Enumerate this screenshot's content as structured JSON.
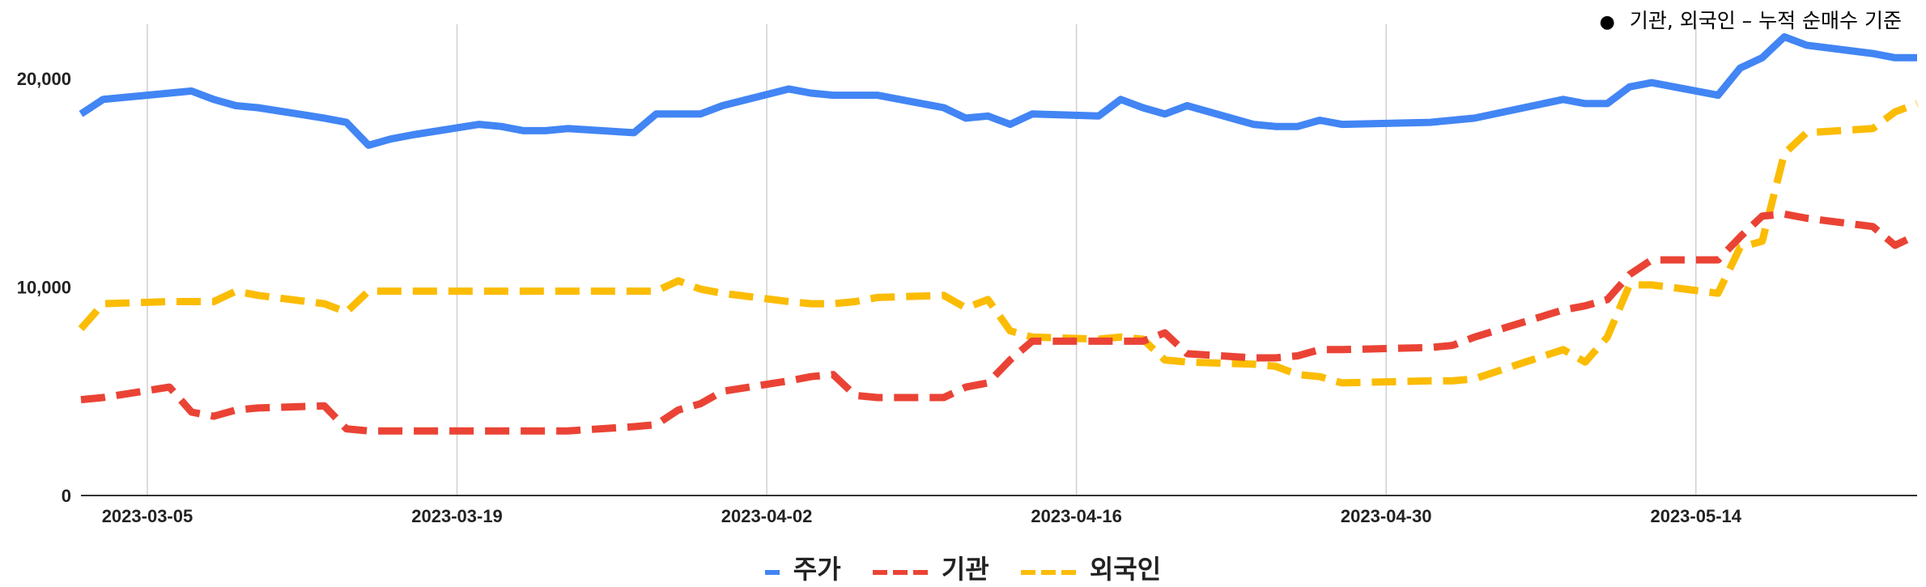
{
  "note": "기관, 외국인 – 누적 순매수 기준",
  "chart_data": {
    "type": "line",
    "x_ticks": [
      "2023-03-05",
      "2023-03-19",
      "2023-04-02",
      "2023-04-16",
      "2023-04-30",
      "2023-05-14"
    ],
    "y_ticks": [
      "0",
      "10,000",
      "20,000"
    ],
    "ylim": [
      0,
      20000
    ],
    "x_range": [
      "2023-03-02",
      "2023-05-24"
    ],
    "grid": "vertical",
    "legend": "bottom",
    "dates": [
      "2023-03-02",
      "2023-03-03",
      "2023-03-06",
      "2023-03-07",
      "2023-03-08",
      "2023-03-09",
      "2023-03-10",
      "2023-03-13",
      "2023-03-14",
      "2023-03-15",
      "2023-03-16",
      "2023-03-17",
      "2023-03-20",
      "2023-03-21",
      "2023-03-22",
      "2023-03-23",
      "2023-03-24",
      "2023-03-27",
      "2023-03-28",
      "2023-03-29",
      "2023-03-30",
      "2023-03-31",
      "2023-04-03",
      "2023-04-04",
      "2023-04-05",
      "2023-04-06",
      "2023-04-07",
      "2023-04-10",
      "2023-04-11",
      "2023-04-12",
      "2023-04-13",
      "2023-04-14",
      "2023-04-17",
      "2023-04-18",
      "2023-04-19",
      "2023-04-20",
      "2023-04-21",
      "2023-04-24",
      "2023-04-25",
      "2023-04-26",
      "2023-04-27",
      "2023-04-28",
      "2023-05-02",
      "2023-05-03",
      "2023-05-04",
      "2023-05-08",
      "2023-05-09",
      "2023-05-10",
      "2023-05-11",
      "2023-05-12",
      "2023-05-15",
      "2023-05-16",
      "2023-05-17",
      "2023-05-18",
      "2023-05-19",
      "2023-05-22",
      "2023-05-23",
      "2023-05-24"
    ],
    "series": [
      {
        "name": "주가",
        "color": "#4285f4",
        "style": "solid",
        "values": [
          18300,
          19000,
          19300,
          19400,
          19000,
          18700,
          18600,
          18100,
          17900,
          16800,
          17100,
          17300,
          17800,
          17700,
          17500,
          17500,
          17600,
          17400,
          18300,
          18300,
          18300,
          18700,
          19500,
          19300,
          19200,
          19200,
          19200,
          18600,
          18100,
          18200,
          17800,
          18300,
          18200,
          19000,
          18600,
          18300,
          18700,
          17800,
          17700,
          17700,
          18000,
          17800,
          17900,
          18000,
          18100,
          19000,
          18800,
          18800,
          19600,
          19800,
          19200,
          20500,
          21000,
          22000,
          21600,
          21200,
          21000,
          21000
        ]
      },
      {
        "name": "기관",
        "color": "#ea4335",
        "style": "dashed",
        "values": [
          4600,
          4700,
          5200,
          4000,
          3800,
          4100,
          4200,
          4300,
          3200,
          3100,
          3100,
          3100,
          3100,
          3100,
          3100,
          3100,
          3100,
          3300,
          3400,
          4100,
          4400,
          5000,
          5500,
          5700,
          5800,
          4800,
          4700,
          4700,
          5200,
          5400,
          6500,
          7400,
          7400,
          7400,
          7400,
          7800,
          6800,
          6600,
          6600,
          6700,
          7000,
          7000,
          7100,
          7200,
          7600,
          8900,
          9100,
          9400,
          10600,
          11300,
          11300,
          12400,
          13400,
          13500,
          13300,
          12900,
          12000,
          12500
        ]
      },
      {
        "name": "외국인",
        "color": "#fbbc04",
        "style": "dashed",
        "values": [
          8000,
          9200,
          9300,
          9300,
          9300,
          9800,
          9600,
          9200,
          8800,
          9800,
          9800,
          9800,
          9800,
          9800,
          9800,
          9800,
          9800,
          9800,
          9800,
          10300,
          9900,
          9700,
          9300,
          9200,
          9200,
          9300,
          9500,
          9600,
          9000,
          9400,
          7900,
          7600,
          7500,
          7600,
          7500,
          6500,
          6400,
          6300,
          6200,
          5800,
          5700,
          5400,
          5500,
          5500,
          5600,
          7000,
          6400,
          7600,
          10100,
          10100,
          9700,
          11900,
          12200,
          16400,
          17400,
          17600,
          18400,
          18800
        ]
      }
    ]
  }
}
